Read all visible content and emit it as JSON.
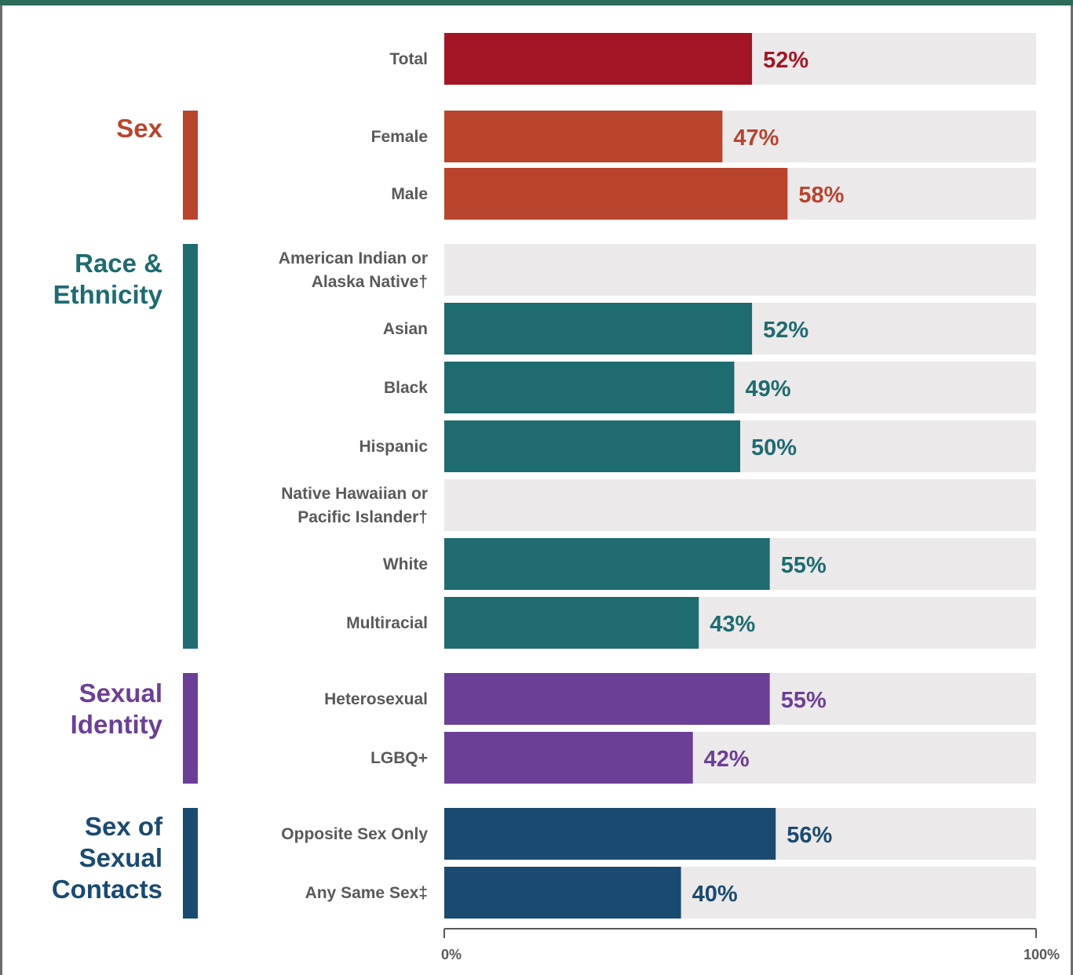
{
  "colors": {
    "total": "#a31525",
    "sex": "#b8442d",
    "race": "#1e6b70",
    "identity": "#6c3f96",
    "contacts": "#1a4a70",
    "track": "#ebe9ea",
    "label": "#595959",
    "frame_top": "#2d6a5a"
  },
  "chart_data": {
    "type": "bar",
    "orientation": "horizontal",
    "xlim": [
      0,
      100
    ],
    "x_ticks": [
      "0%",
      "100%"
    ],
    "groups": [
      {
        "key": "total",
        "label": "",
        "rows": [
          {
            "label": "Total",
            "value": 52,
            "value_label": "52%"
          }
        ]
      },
      {
        "key": "sex",
        "label": "Sex",
        "rows": [
          {
            "label": "Female",
            "value": 47,
            "value_label": "47%"
          },
          {
            "label": "Male",
            "value": 58,
            "value_label": "58%"
          }
        ]
      },
      {
        "key": "race",
        "label": "Race & Ethnicity",
        "rows": [
          {
            "label": "American Indian or Alaska Native†",
            "value": null,
            "value_label": ""
          },
          {
            "label": "Asian",
            "value": 52,
            "value_label": "52%"
          },
          {
            "label": "Black",
            "value": 49,
            "value_label": "49%"
          },
          {
            "label": "Hispanic",
            "value": 50,
            "value_label": "50%"
          },
          {
            "label": "Native Hawaiian or Pacific Islander†",
            "value": null,
            "value_label": ""
          },
          {
            "label": "White",
            "value": 55,
            "value_label": "55%"
          },
          {
            "label": "Multiracial",
            "value": 43,
            "value_label": "43%"
          }
        ]
      },
      {
        "key": "identity",
        "label": "Sexual Identity",
        "rows": [
          {
            "label": "Heterosexual",
            "value": 55,
            "value_label": "55%"
          },
          {
            "label": "LGBQ+",
            "value": 42,
            "value_label": "42%"
          }
        ]
      },
      {
        "key": "contacts",
        "label": "Sex of Sexual Contacts",
        "rows": [
          {
            "label": "Opposite Sex Only",
            "value": 56,
            "value_label": "56%"
          },
          {
            "label": "Any Same Sex‡",
            "value": 40,
            "value_label": "40%"
          }
        ]
      }
    ]
  }
}
